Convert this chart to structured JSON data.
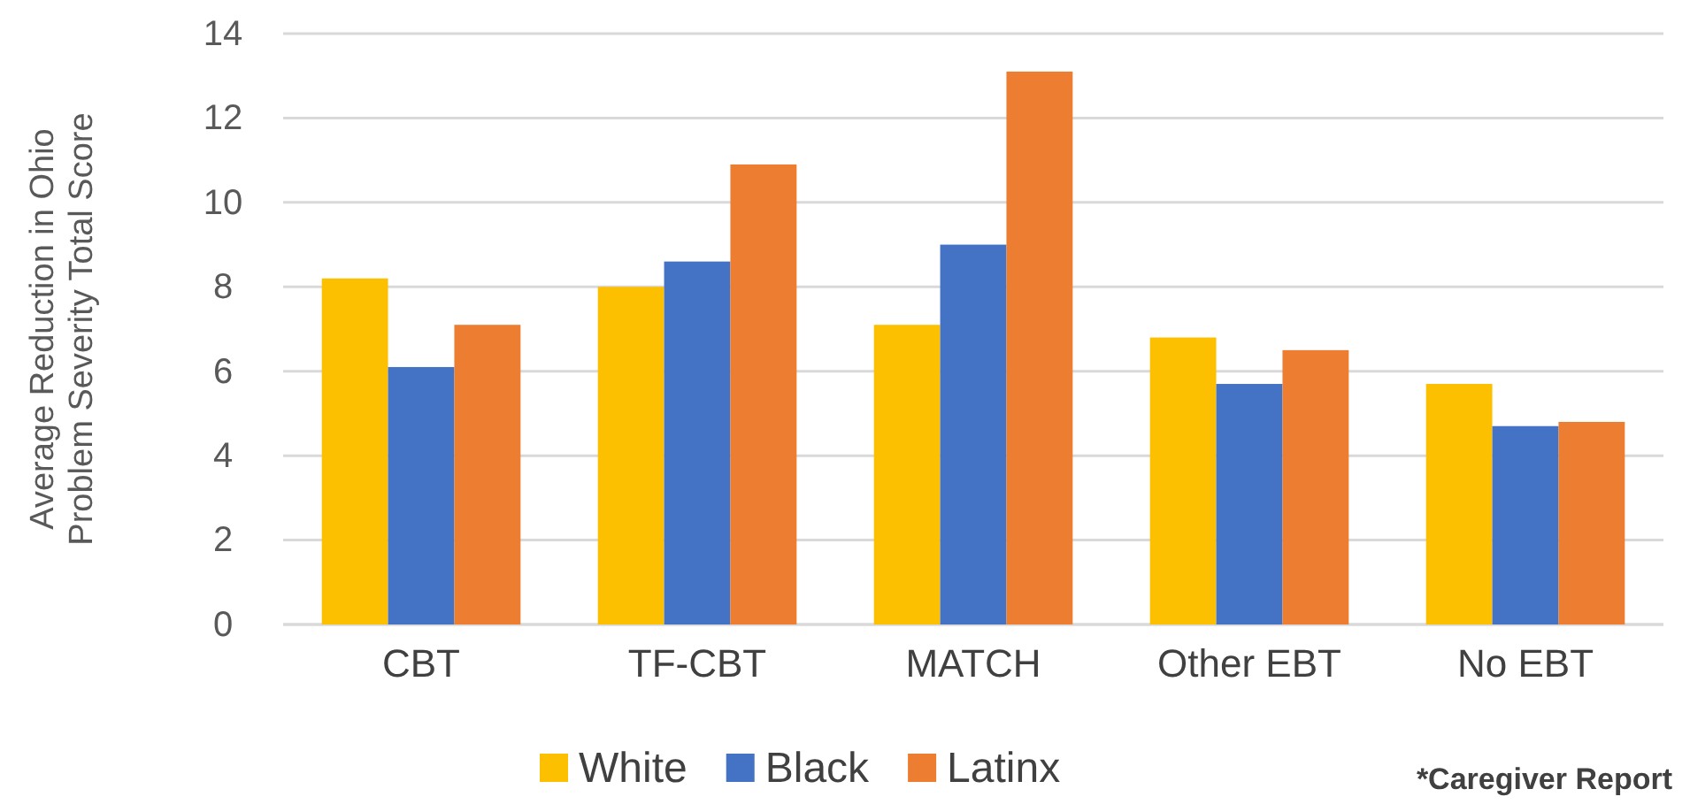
{
  "chart_data": {
    "type": "bar",
    "ylabel": "Average Reduction in Ohio\nProblem Severity Total Score",
    "categories": [
      "CBT",
      "TF-CBT",
      "MATCH",
      "Other EBT",
      "No EBT"
    ],
    "series": [
      {
        "name": "White",
        "color": "#fcc000",
        "values": [
          8.2,
          8.0,
          7.1,
          6.8,
          5.7
        ]
      },
      {
        "name": "Black",
        "color": "#4472c4",
        "values": [
          6.1,
          8.6,
          9.0,
          5.7,
          4.7
        ]
      },
      {
        "name": "Latinx",
        "color": "#ed7d31",
        "values": [
          7.1,
          10.9,
          13.1,
          6.5,
          4.8
        ]
      }
    ],
    "ylim": [
      0,
      14
    ],
    "yticks": [
      0,
      2,
      4,
      6,
      8,
      10,
      12,
      14
    ],
    "grid": "y",
    "legend": "bottom",
    "annotations": [
      "*Caregiver Report"
    ]
  }
}
